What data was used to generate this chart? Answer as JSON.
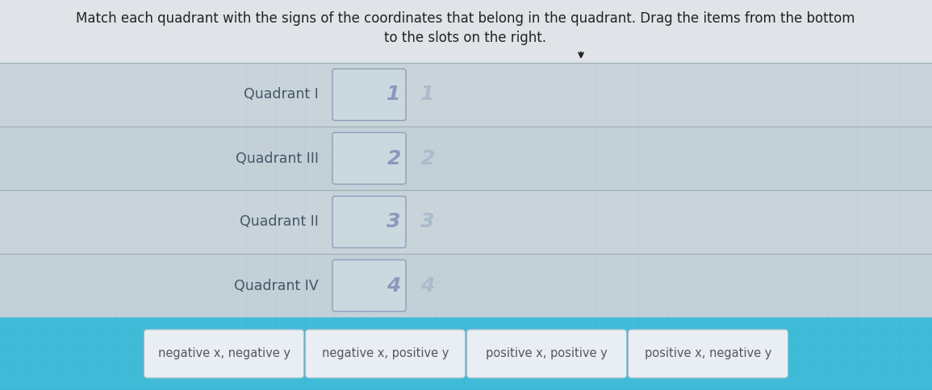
{
  "title_line1": "Match each quadrant with the signs of the coordinates that belong in the quadrant. Drag the items from the bottom",
  "title_line2": "to the slots on the right.",
  "main_bg": "#d8dce0",
  "quadrants": [
    "Quadrant I",
    "Quadrant III",
    "Quadrant II",
    "Quadrant IV"
  ],
  "slot_numbers": [
    "1",
    "2",
    "3",
    "4"
  ],
  "slot_box_fill": "#ccd8e0",
  "slot_box_border": "#8aa0b8",
  "slot_number_color": "#8899bb",
  "answer_number_color": "#aabbcc",
  "items": [
    "negative x, negative y",
    "negative x, positive y",
    "positive x, positive y",
    "positive x, negative y"
  ],
  "item_bg": "#e8eef2",
  "item_border": "#aabbcc",
  "item_text_color": "#555566",
  "quadrant_text_color": "#445566",
  "row_bg": "#cdd5db",
  "grid_color": "#b8c4cc",
  "bottom_bar_color": "#40bcd8",
  "title_color": "#222222",
  "cursor_color": "#222222"
}
